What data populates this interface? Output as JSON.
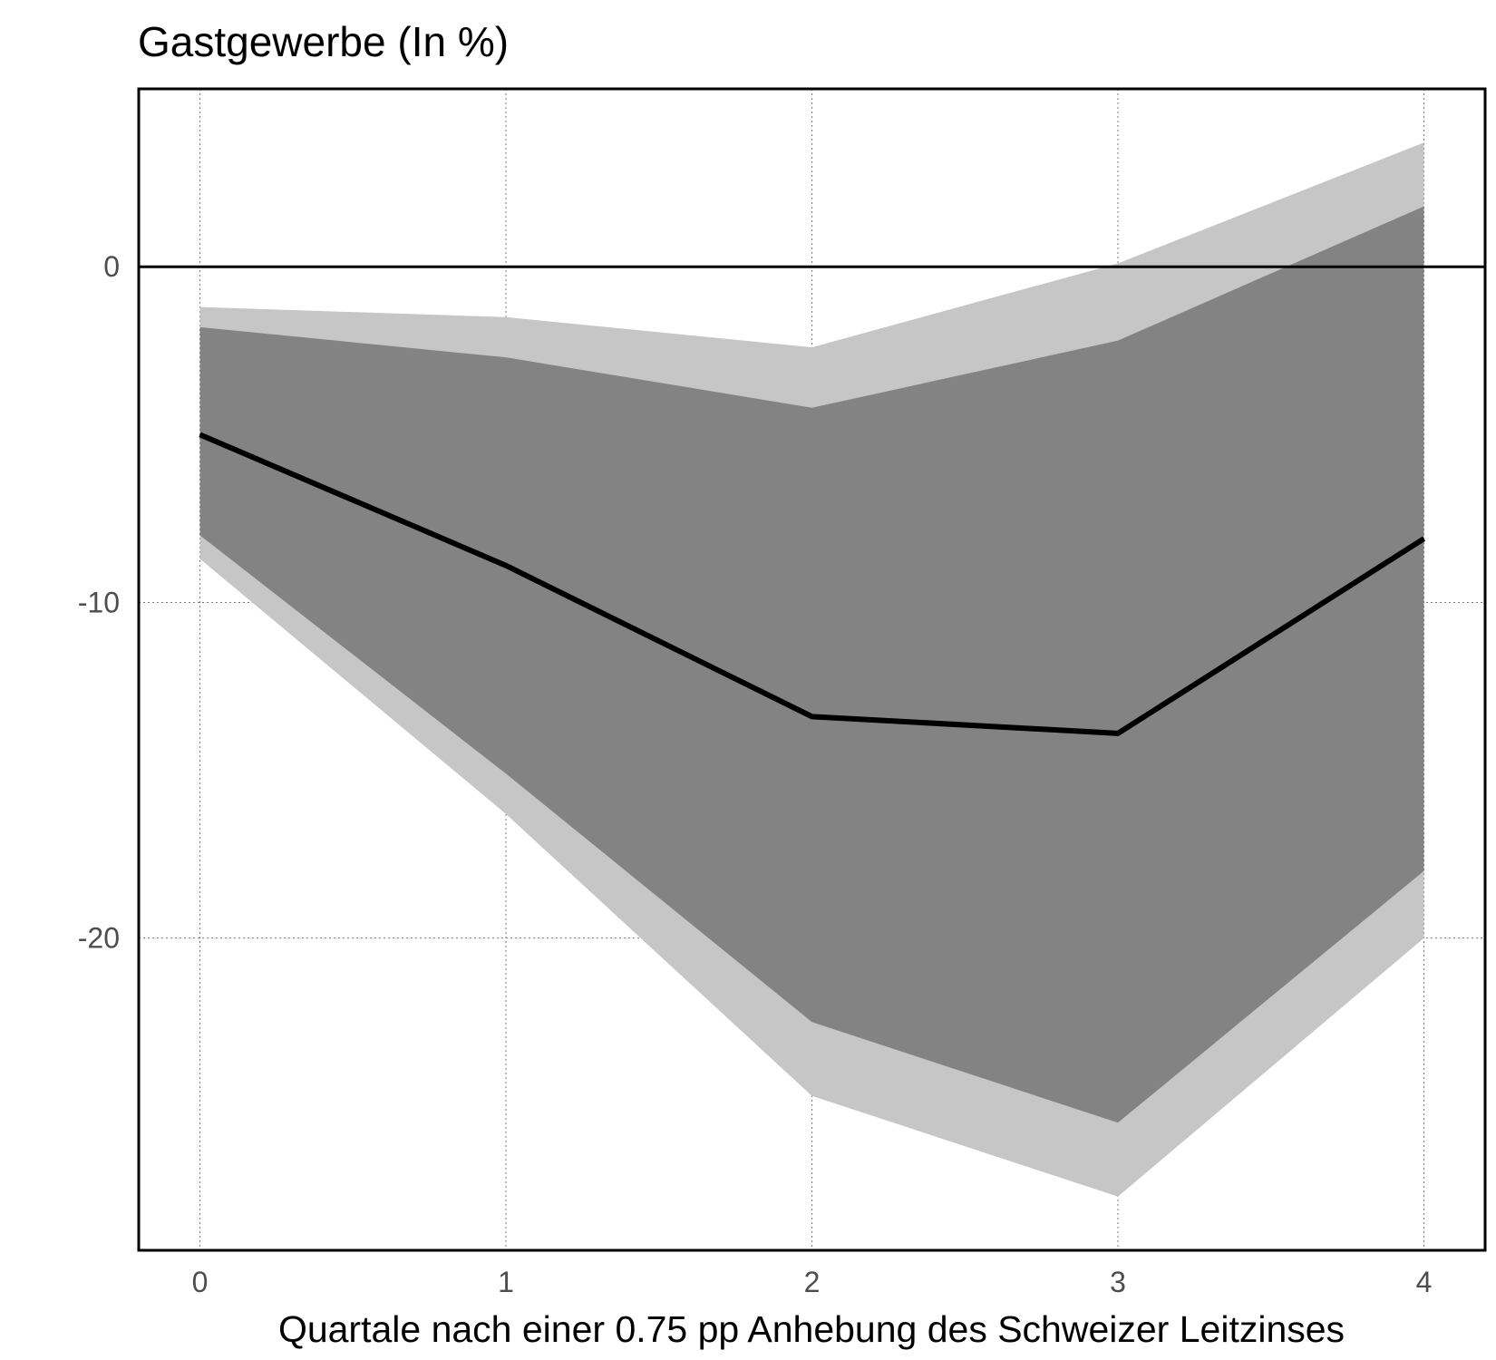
{
  "chart_data": {
    "type": "area",
    "title": "Gastgewerbe (In %)",
    "xlabel": "Quartale nach einer 0.75 pp Anhebung des Schweizer Leitzinses",
    "ylabel": "",
    "x": [
      0,
      1,
      2,
      3,
      4
    ],
    "x_ticks": [
      "0",
      "1",
      "2",
      "3",
      "4"
    ],
    "y_ticks": [
      "0",
      "-10",
      "-20"
    ],
    "y_tick_values": [
      0,
      -10,
      -20
    ],
    "xlim": [
      -0.2,
      4.2
    ],
    "ylim": [
      -29.3,
      5.3
    ],
    "grid": true,
    "zero_line": 0,
    "series": [
      {
        "role": "outer_band",
        "color": "#c6c6c6",
        "upper": [
          -1.2,
          -1.5,
          -2.4,
          0.1,
          3.7
        ],
        "lower": [
          -8.7,
          -16.3,
          -24.7,
          -27.7,
          -20.0
        ]
      },
      {
        "role": "inner_band",
        "color": "#838383",
        "upper": [
          -1.8,
          -2.7,
          -4.2,
          -2.2,
          1.8
        ],
        "lower": [
          -8.0,
          -15.1,
          -22.5,
          -25.5,
          -18.0
        ]
      },
      {
        "role": "point_estimate",
        "color": "#000000",
        "values": [
          -5.0,
          -8.9,
          -13.4,
          -13.9,
          -8.1
        ]
      }
    ]
  }
}
